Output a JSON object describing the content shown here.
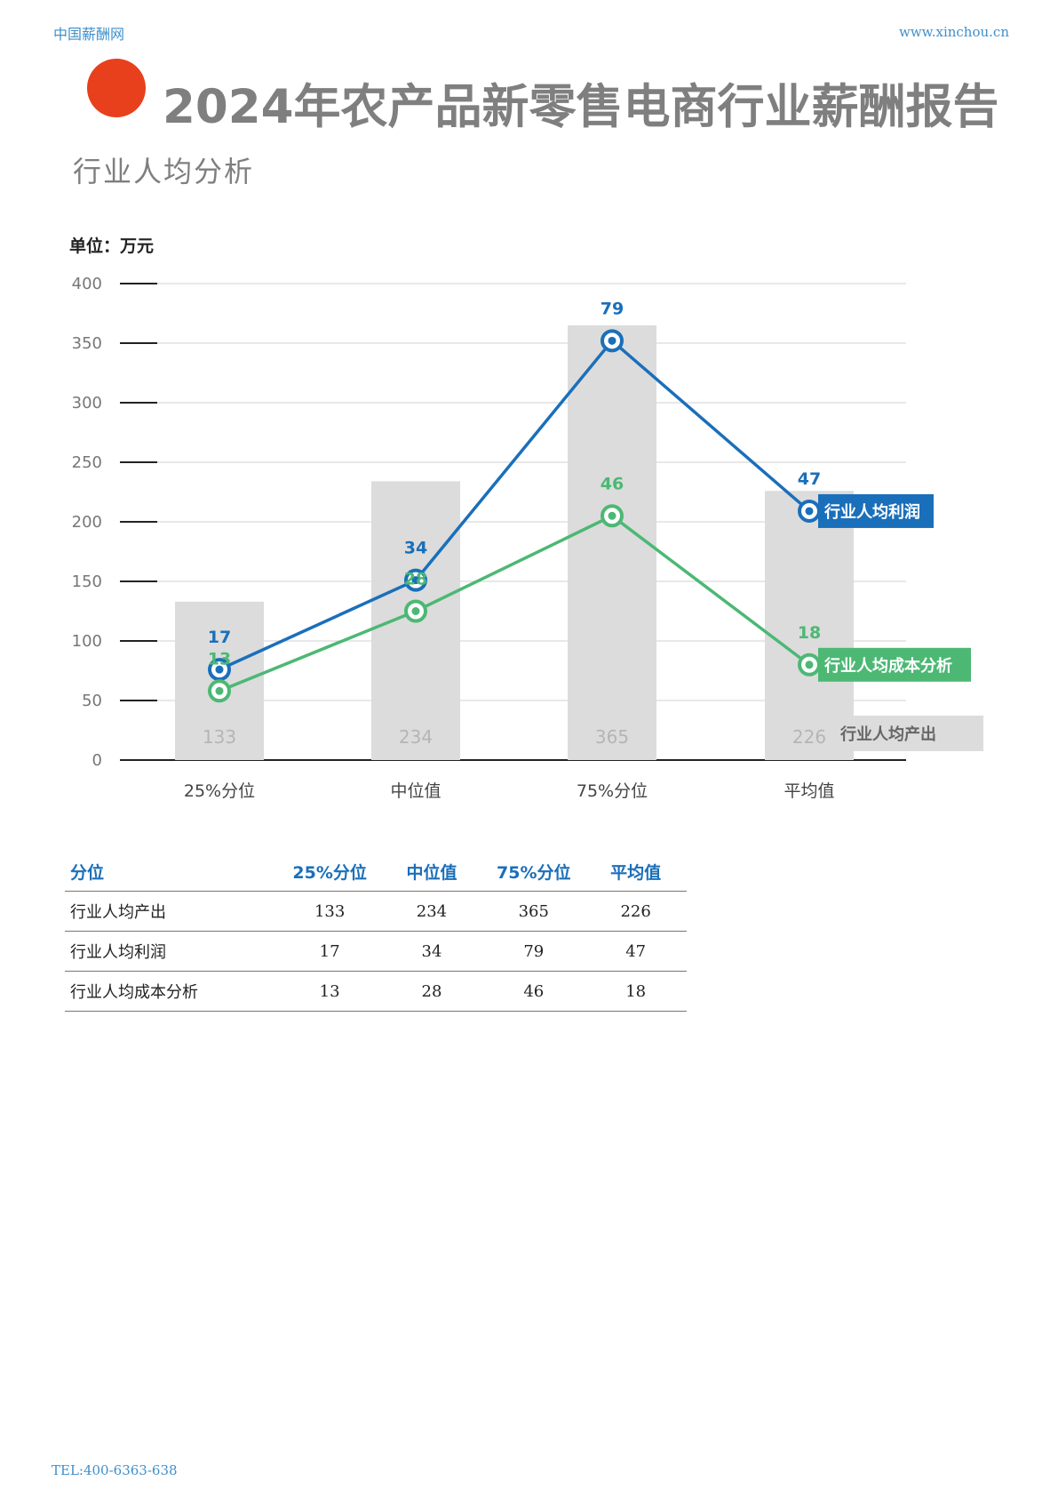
{
  "header": {
    "site_name": "中国薪酬网",
    "url": "www.xinchou.cn"
  },
  "title": "2024年农产品新零售电商行业薪酬报告",
  "subtitle": "行业人均分析",
  "unit_label": "单位：万元",
  "colors": {
    "accent_red": "#e8401c",
    "blue": "#1a6fba",
    "green": "#4cb874",
    "bar_gray": "#dcdcdc",
    "header_blue": "#3f8fcb"
  },
  "chart_data": {
    "type": "bar+line",
    "categories": [
      "25%分位",
      "中位值",
      "75%分位",
      "平均值"
    ],
    "ylim": [
      0,
      400
    ],
    "yticks": [
      0,
      50,
      100,
      150,
      200,
      250,
      300,
      350,
      400
    ],
    "series": [
      {
        "name": "行业人均产出",
        "type": "bar",
        "values": [
          133,
          234,
          365,
          226
        ],
        "plot_values": [
          133,
          234,
          365,
          226
        ],
        "color": "#dcdcdc"
      },
      {
        "name": "行业人均利润",
        "type": "line",
        "values": [
          17,
          34,
          79,
          47
        ],
        "plot_values": [
          76,
          151,
          352,
          209
        ],
        "color": "#1a6fba"
      },
      {
        "name": "行业人均成本分析",
        "type": "line",
        "values": [
          13,
          28,
          46,
          18
        ],
        "plot_values": [
          58,
          125,
          205,
          80
        ],
        "color": "#4cb874"
      }
    ]
  },
  "table": {
    "headers": [
      "分位",
      "25%分位",
      "中位值",
      "75%分位",
      "平均值"
    ],
    "rows": [
      [
        "行业人均产出",
        "133",
        "234",
        "365",
        "226"
      ],
      [
        "行业人均利润",
        "17",
        "34",
        "79",
        "47"
      ],
      [
        "行业人均成本分析",
        "13",
        "28",
        "46",
        "18"
      ]
    ]
  },
  "footer": {
    "tel": "TEL:400-6363-638"
  }
}
